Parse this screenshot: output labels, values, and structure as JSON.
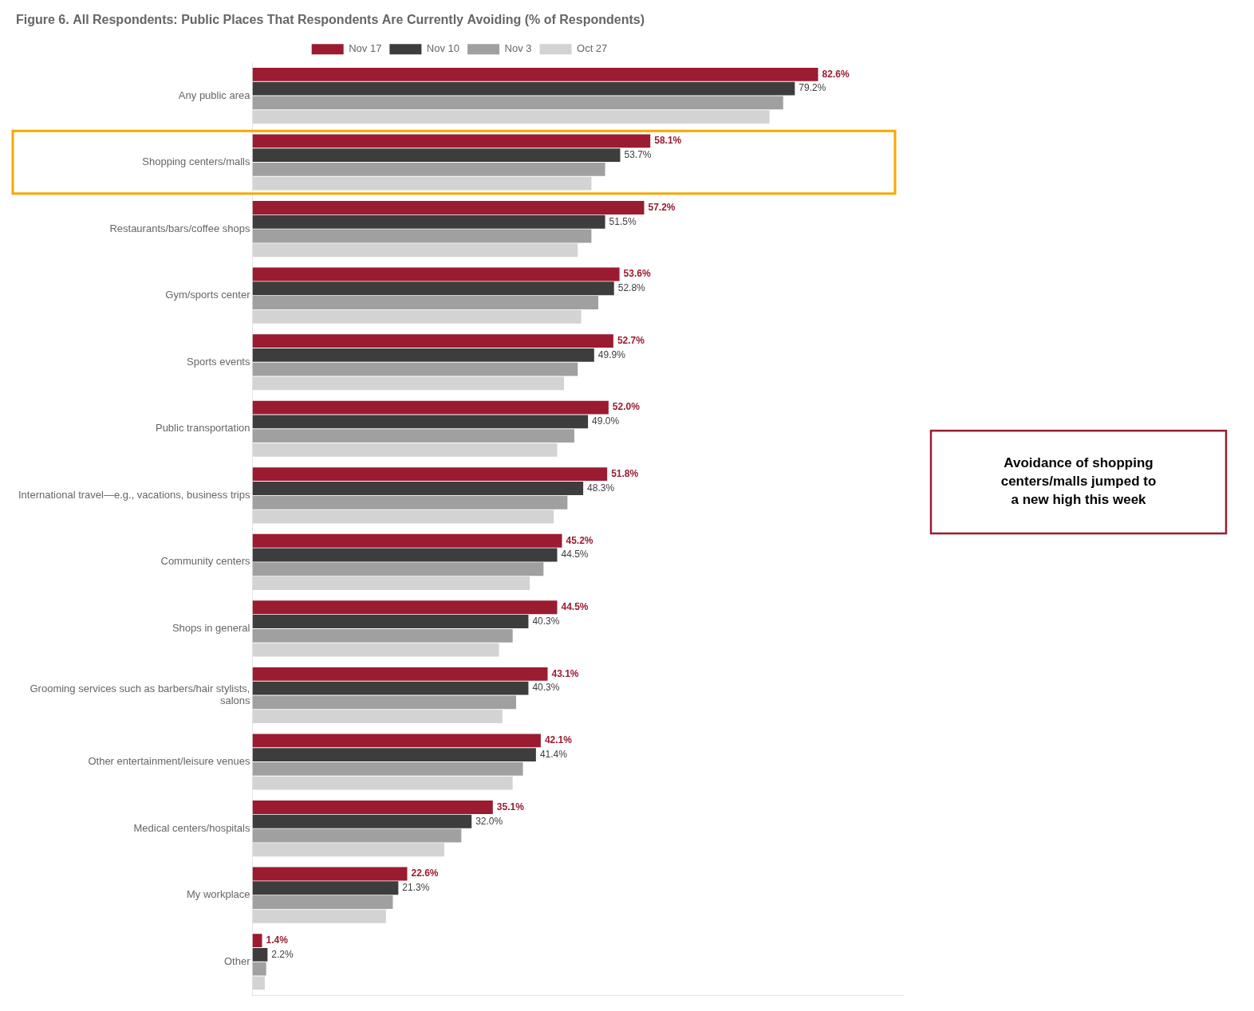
{
  "chart_data": {
    "type": "bar",
    "orientation": "horizontal",
    "title": "Figure 6. All Respondents: Public Places That Respondents Are Currently Avoiding (% of Respondents)",
    "categories": [
      "Any public area",
      "Shopping centers/malls",
      "Restaurants/bars/coffee shops",
      "Gym/sports center",
      "Sports events",
      "Public transportation",
      "International travel—e.g., vacations, business trips",
      "Community centers",
      "Shops in general",
      "Grooming services such as barbers/hair stylists,\nsalons",
      "Other entertainment/leisure venues",
      "Medical centers/hospitals",
      "My workplace",
      "Other"
    ],
    "series": [
      {
        "name": "Nov 17",
        "color": "#9B1B30",
        "values": [
          82.6,
          58.1,
          57.2,
          53.6,
          52.7,
          52.0,
          51.8,
          45.2,
          44.5,
          43.1,
          42.1,
          35.1,
          22.6,
          1.4
        ],
        "value_labels": [
          "82.6%",
          "58.1%",
          "57.2%",
          "53.6%",
          "52.7%",
          "52.0%",
          "51.8%",
          "45.2%",
          "44.5%",
          "43.1%",
          "42.1%",
          "35.1%",
          "22.6%",
          "1.4%"
        ]
      },
      {
        "name": "Nov 10",
        "color": "#3D3D3D",
        "values": [
          79.2,
          53.7,
          51.5,
          52.8,
          49.9,
          49.0,
          48.3,
          44.5,
          40.3,
          40.3,
          41.4,
          32.0,
          21.3,
          2.2
        ],
        "value_labels": [
          "79.2%",
          "53.7%",
          "51.5%",
          "52.8%",
          "49.9%",
          "49.0%",
          "48.3%",
          "44.5%",
          "40.3%",
          "40.3%",
          "41.4%",
          "32.0%",
          "21.3%",
          "2.2%"
        ]
      },
      {
        "name": "Nov 3",
        "color": "#A0A0A0",
        "values": [
          77.5,
          51.5,
          49.5,
          50.5,
          47.5,
          47.0,
          46.0,
          42.5,
          38.0,
          38.5,
          39.5,
          30.5,
          20.5,
          2.0
        ]
      },
      {
        "name": "Oct 27",
        "color": "#D3D3D3",
        "values": [
          75.5,
          49.5,
          47.5,
          48.0,
          45.5,
          44.5,
          44.0,
          40.5,
          36.0,
          36.5,
          38.0,
          28.0,
          19.5,
          1.8
        ]
      }
    ],
    "xlim": [
      0,
      95
    ],
    "tick_labels": "y",
    "grid": false,
    "legend": "top",
    "annotations": [
      {
        "text": "Avoidance of shopping\ncenters/malls jumped to\na new high this week",
        "category": "Shopping centers/malls",
        "color": "#9B1B30"
      }
    ]
  }
}
